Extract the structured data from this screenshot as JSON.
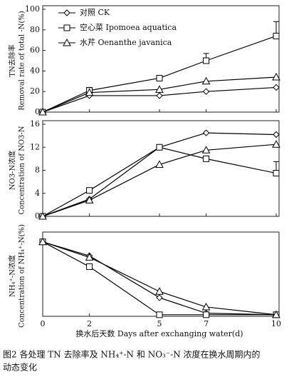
{
  "chart_data": [
    {
      "type": "line",
      "ylabel_lines": [
        "TN去除率",
        "Removal rate of total -N(%)"
      ],
      "x": [
        0,
        2,
        5,
        7,
        10
      ],
      "xlim": [
        0,
        10
      ],
      "ylim": [
        0,
        100
      ],
      "yticks": [
        0,
        20,
        40,
        60,
        80,
        100
      ],
      "legend": "upper left",
      "series": [
        {
          "name": "对照 CK",
          "color": "#000000",
          "marker": "diamond",
          "values": [
            0,
            16,
            16,
            20,
            24
          ]
        },
        {
          "name": "空心菜 Ipomoea aquatica",
          "color": "#000000",
          "marker": "square",
          "values": [
            0,
            21,
            33,
            50,
            74
          ],
          "errors": [
            null,
            3,
            null,
            7,
            14
          ]
        },
        {
          "name": "水芹 Oenanthe javanica",
          "color": "#000000",
          "marker": "triangle",
          "values": [
            0,
            19,
            22,
            30,
            34
          ]
        }
      ]
    },
    {
      "type": "line",
      "ylabel_lines": [
        "NO3-N浓度",
        "Concentration of  NO3-N"
      ],
      "x": [
        0,
        2,
        5,
        7,
        10
      ],
      "xlim": [
        0,
        10
      ],
      "ylim": [
        0,
        16
      ],
      "yticks": [
        0,
        4,
        8,
        12,
        16
      ],
      "series": [
        {
          "color": "#000000",
          "marker": "diamond",
          "values": [
            0,
            3,
            12,
            14.5,
            14.2
          ]
        },
        {
          "color": "#000000",
          "marker": "square",
          "values": [
            0,
            4.5,
            12,
            10,
            7.5
          ],
          "errors": [
            null,
            null,
            null,
            null,
            2
          ]
        },
        {
          "color": "#000000",
          "marker": "triangle",
          "values": [
            0,
            2.8,
            9,
            11.5,
            12.5
          ]
        }
      ]
    },
    {
      "type": "line",
      "ylabel_lines": [
        "NH₄⁺-N浓度",
        "Concentration of  NH₄⁺-N(%)"
      ],
      "x": [
        0,
        2,
        5,
        7,
        10
      ],
      "xlim": [
        0,
        10
      ],
      "ylim": [
        0,
        26
      ],
      "xticks": [
        0,
        2,
        5,
        7,
        10
      ],
      "xlabel": "换水后天数 Days after exchanging water(d)",
      "series": [
        {
          "color": "#000000",
          "marker": "diamond",
          "values": [
            24,
            19.5,
            6,
            1,
            0.5
          ]
        },
        {
          "color": "#000000",
          "marker": "square",
          "values": [
            24,
            16,
            0.5,
            0.5,
            0.5
          ]
        },
        {
          "color": "#000000",
          "marker": "triangle",
          "values": [
            24,
            19,
            8,
            3,
            0.5
          ]
        }
      ]
    }
  ],
  "caption_lines": [
    "图2  各处理 TN 去除率及 NH₄⁺-N 和 NO₃⁻-N 浓度在换水周期内的",
    "动态变化"
  ]
}
